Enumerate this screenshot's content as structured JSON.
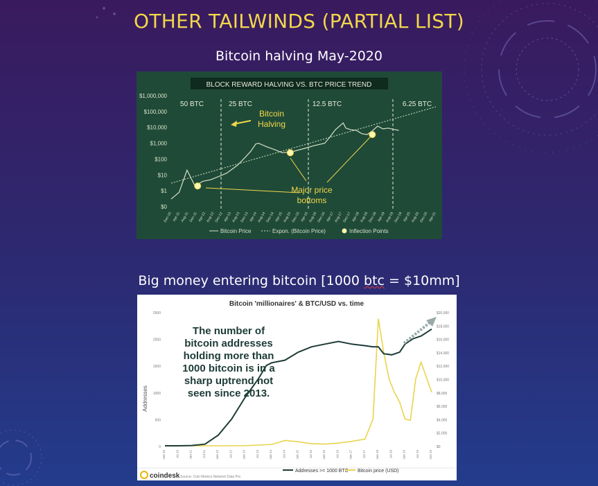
{
  "slide": {
    "title": "OTHER TAILWINDS (PARTIAL LIST)",
    "subtitle1": "Bitcoin halving May-2020",
    "subtitle2_pre": "Big money entering bitcoin [1000 ",
    "subtitle2_underlined": "btc",
    "subtitle2_post": " = $10mm]"
  },
  "colors": {
    "title": "#f2d84a",
    "chart1_bg": "#1f4a38",
    "chart1_line": "#d9e2c8",
    "chart1_accent": "#f2d84a",
    "chart2_addresses": "#1c3b36",
    "chart2_price": "#e8d44d"
  },
  "chart_data": [
    {
      "type": "line",
      "title": "BLOCK REWARD HALVING VS. BTC PRICE TREND",
      "y_scale": "log",
      "y_ticks": [
        "$1,000,000",
        "$100,000",
        "$10,000",
        "$1,000",
        "$100",
        "$10",
        "$1",
        "$0"
      ],
      "x_ticks": [
        "Dec-10",
        "Apr-11",
        "Aug-11",
        "Dec-11",
        "Apr-12",
        "Aug-12",
        "Dec-12",
        "Apr-13",
        "Aug-13",
        "Dec-13",
        "Apr-14",
        "Aug-14",
        "Dec-14",
        "Apr-15",
        "Aug-15",
        "Dec-15",
        "Apr-16",
        "Aug-16",
        "Dec-16",
        "Apr-17",
        "Aug-17",
        "Dec-17",
        "Apr-18",
        "Aug-18",
        "Dec-18",
        "Apr-19",
        "Aug-19",
        "Dec-19",
        "Apr-20",
        "Aug-20",
        "Dec-20",
        "Apr-21"
      ],
      "eras": [
        "50 BTC",
        "25 BTC",
        "12.5 BTC",
        "6.25 BTC"
      ],
      "annotations": {
        "halving": "Bitcoin Halving",
        "bottoms_line1": "Major price",
        "bottoms_line2": "bottoms"
      },
      "legend": [
        "Bitcoin Price",
        "Expon. (Bitcoin Price)",
        "Inflection Points"
      ],
      "legend_position": "bottom",
      "series": [
        {
          "name": "Bitcoin Price",
          "x": [
            0,
            0.03,
            0.06,
            0.09,
            0.12,
            0.15,
            0.18,
            0.21,
            0.25,
            0.28,
            0.3,
            0.32,
            0.33,
            0.36,
            0.39,
            0.42,
            0.46,
            0.5,
            0.54,
            0.58,
            0.6,
            0.62,
            0.65,
            0.66,
            0.68,
            0.7,
            0.72,
            0.74,
            0.76,
            0.78,
            0.8,
            0.82,
            0.84,
            0.86
          ],
          "y": [
            0.3,
            0.8,
            20,
            2,
            4,
            5,
            8,
            13,
            40,
            130,
            300,
            900,
            1000,
            600,
            400,
            250,
            300,
            450,
            700,
            1000,
            2500,
            7000,
            19000,
            9000,
            7000,
            6500,
            4000,
            3500,
            6000,
            12000,
            8000,
            9000,
            7500,
            6500
          ]
        },
        {
          "name": "Expon. (Bitcoin Price)",
          "x": [
            0,
            1
          ],
          "y": [
            3,
            200000
          ]
        }
      ],
      "inflection_points": [
        {
          "x": 0.1,
          "y": 2
        },
        {
          "x": 0.45,
          "y": 250
        },
        {
          "x": 0.76,
          "y": 3500
        }
      ]
    },
    {
      "type": "line",
      "title": "Bitcoin 'millionaires' & BTC/USD vs. time",
      "ylabel": "Addresses",
      "y_left_ticks": [
        "2500",
        "2000",
        "1500",
        "1000",
        "500",
        "0"
      ],
      "y_right_ticks": [
        "$20,000",
        "$18,000",
        "$16,000",
        "$14,000",
        "$12,000",
        "$10,000",
        "$8,000",
        "$6,000",
        "$4,000",
        "$2,000",
        "$0"
      ],
      "x_ticks": [
        "Jan-10",
        "Jul-10",
        "Jan-11",
        "Jul-11",
        "Jan-12",
        "Jul-12",
        "Jan-13",
        "Jul-13",
        "Jan-14",
        "Jul-14",
        "Jan-15",
        "Jul-15",
        "Jan-16",
        "Jul-16",
        "Jan-17",
        "Jul-17",
        "Jan-18",
        "Jul-18",
        "Jan-19",
        "Jul-19",
        "Oct-19"
      ],
      "annotation": "The number of bitcoin addresses holding more than 1000 bitcoin is in a sharp uptrend not seen since 2013.",
      "annotation_lines": [
        "The number of",
        "bitcoin addresses",
        "holding more than",
        "1000 bitcoin is in a",
        "sharp uptrend not",
        "seen since 2013."
      ],
      "legend": [
        "Addresses >= 1000 BTC",
        "Bitcoin price (USD)"
      ],
      "legend_position": "bottom",
      "logo": "coindesk",
      "source": "Source: Coin Metrics Network Data Pro",
      "series": [
        {
          "name": "Addresses >= 1000 BTC",
          "axis": "left",
          "x": [
            0,
            0.05,
            0.1,
            0.15,
            0.2,
            0.25,
            0.3,
            0.35,
            0.38,
            0.4,
            0.45,
            0.5,
            0.55,
            0.6,
            0.65,
            0.7,
            0.75,
            0.78,
            0.8,
            0.82,
            0.85,
            0.88,
            0.9,
            0.93,
            0.96,
            1
          ],
          "y": [
            0,
            0,
            5,
            30,
            200,
            500,
            900,
            1250,
            1500,
            1550,
            1600,
            1750,
            1850,
            1900,
            1950,
            1900,
            1870,
            1850,
            1850,
            1720,
            1700,
            1750,
            1900,
            2000,
            2050,
            2180
          ]
        },
        {
          "name": "Bitcoin price (USD)",
          "axis": "right",
          "x": [
            0,
            0.2,
            0.3,
            0.35,
            0.4,
            0.45,
            0.5,
            0.55,
            0.6,
            0.65,
            0.7,
            0.75,
            0.78,
            0.8,
            0.82,
            0.84,
            0.86,
            0.88,
            0.9,
            0.92,
            0.94,
            0.96,
            1
          ],
          "y": [
            0,
            0,
            20,
            100,
            200,
            800,
            600,
            300,
            250,
            400,
            650,
            1000,
            4000,
            19000,
            14000,
            10000,
            8000,
            6500,
            4000,
            3800,
            10000,
            12500,
            8000
          ]
        }
      ]
    }
  ]
}
